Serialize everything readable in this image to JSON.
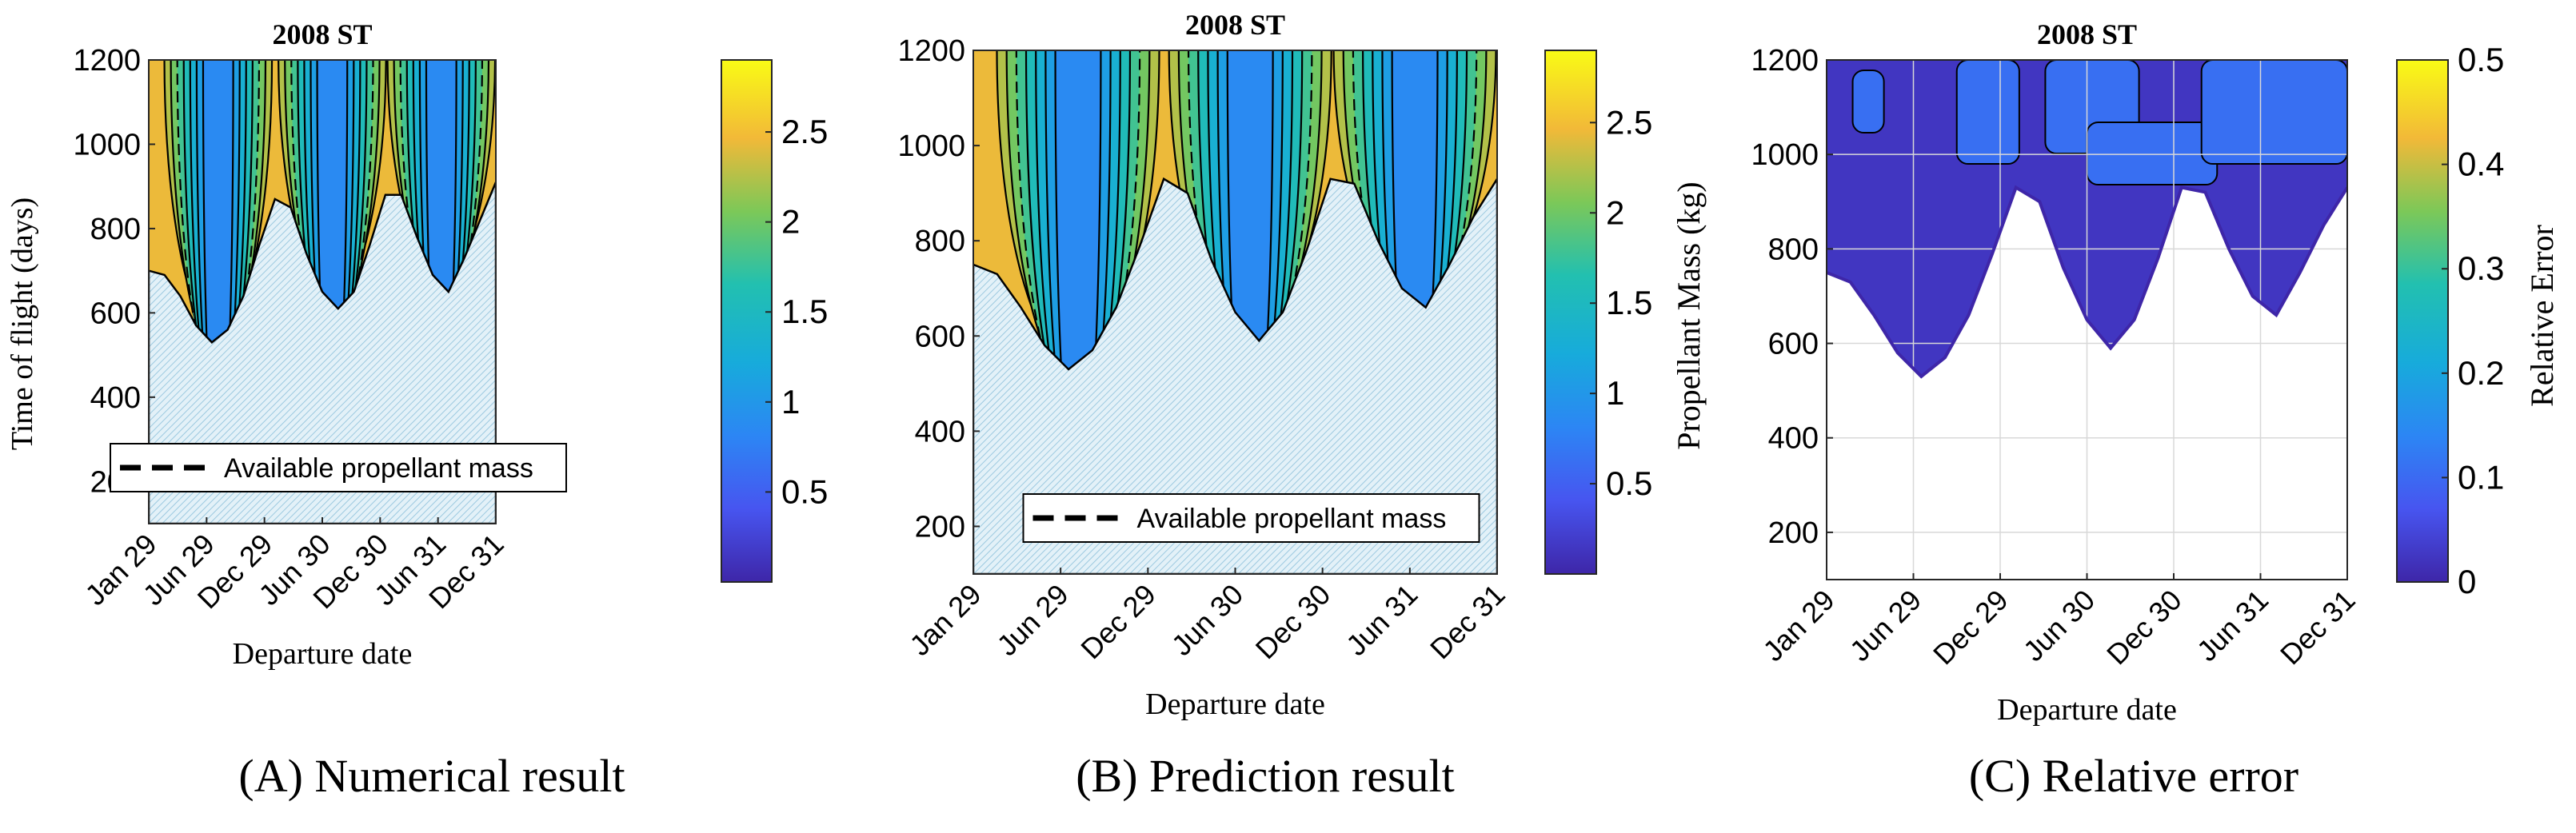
{
  "chart_data": [
    {
      "type": "contour",
      "panel_caption": "(A) Numerical result",
      "title": "2008 ST",
      "xlabel": "Departure date",
      "ylabel": "Time of flight (days)",
      "x_ticks": [
        "Jan 29",
        "Jun 29",
        "Dec 29",
        "Jun 30",
        "Dec 30",
        "Jun 31",
        "Dec 31"
      ],
      "y_ticks": [
        200,
        400,
        600,
        800,
        1000,
        1200
      ],
      "ylim": [
        100,
        1200
      ],
      "colorbar": {
        "label": "",
        "ticks": [
          "0.5",
          "1",
          "1.5",
          "2",
          "2.5"
        ],
        "range": [
          0,
          2.9
        ],
        "colormap": "parula"
      },
      "legend": {
        "entries": [
          "Available propellant mass"
        ],
        "placement": "bottom"
      },
      "feasible_boundary_tof_days": [
        700,
        690,
        640,
        570,
        530,
        560,
        640,
        760,
        870,
        850,
        740,
        650,
        610,
        650,
        760,
        880,
        880,
        780,
        690,
        650,
        730,
        820,
        910
      ],
      "min_mass_basins": [
        {
          "center_month": 7,
          "min_tof_days": 530
        },
        {
          "center_month": 18.5,
          "min_tof_days": 610
        },
        {
          "center_month": 29.5,
          "min_tof_days": 650
        }
      ]
    },
    {
      "type": "contour",
      "panel_caption": "(B) Prediction result",
      "title": "2008 ST",
      "xlabel": "Departure date",
      "ylabel": "Propellant Mass (kg)",
      "x_ticks": [
        "Jan 29",
        "Jun 29",
        "Dec 29",
        "Jun 30",
        "Dec 30",
        "Jun 31",
        "Dec 31"
      ],
      "y_ticks": [
        200,
        400,
        600,
        800,
        1000,
        1200
      ],
      "ylim": [
        100,
        1200
      ],
      "colorbar": {
        "label": "Propellant Mass (kg)",
        "ticks": [
          "0.5",
          "1",
          "1.5",
          "2",
          "2.5"
        ],
        "range": [
          0,
          2.9
        ],
        "colormap": "parula"
      },
      "legend": {
        "entries": [
          "Available propellant mass"
        ],
        "placement": "bottom"
      },
      "feasible_boundary_tof_days": [
        750,
        730,
        660,
        580,
        530,
        570,
        660,
        790,
        930,
        900,
        760,
        650,
        590,
        650,
        780,
        930,
        920,
        800,
        700,
        660,
        750,
        850,
        930
      ],
      "min_mass_basins": [
        {
          "center_month": 7,
          "min_tof_days": 530
        },
        {
          "center_month": 18.5,
          "min_tof_days": 590
        },
        {
          "center_month": 29.5,
          "min_tof_days": 660
        }
      ]
    },
    {
      "type": "contour",
      "panel_caption": "(C) Relative error",
      "title": "2008 ST",
      "xlabel": "Departure date",
      "ylabel": "Relative Error",
      "x_ticks": [
        "Jan 29",
        "Jun 29",
        "Dec 29",
        "Jun 30",
        "Dec 30",
        "Jun 31",
        "Dec 31"
      ],
      "y_ticks": [
        200,
        400,
        600,
        800,
        1000,
        1200
      ],
      "ylim": [
        100,
        1200
      ],
      "grid": true,
      "colorbar": {
        "label": "Relative Error",
        "ticks": [
          "0",
          "0.1",
          "0.2",
          "0.3",
          "0.4",
          "0.5"
        ],
        "range": [
          0,
          0.5
        ],
        "colormap": "parula"
      },
      "feasible_boundary_tof_days": [
        750,
        730,
        660,
        580,
        530,
        570,
        660,
        790,
        930,
        900,
        760,
        650,
        590,
        650,
        780,
        930,
        920,
        800,
        700,
        660,
        750,
        850,
        930
      ]
    }
  ]
}
